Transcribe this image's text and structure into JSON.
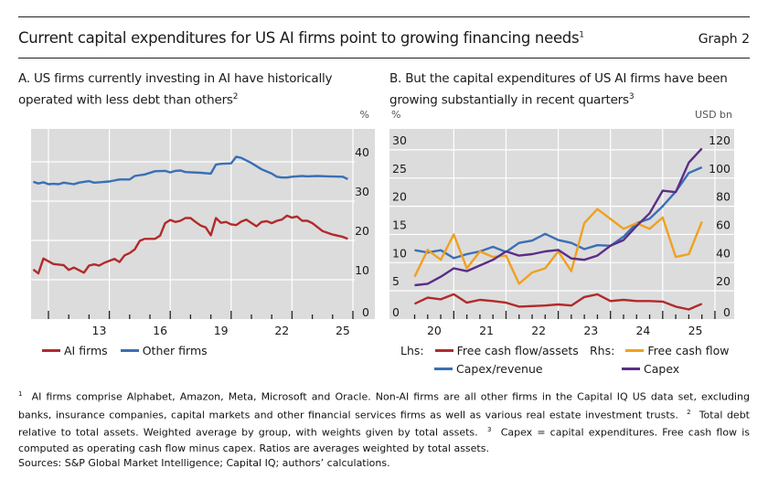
{
  "header": {
    "title": "Current capital expenditures for US AI firms point to growing financing needs",
    "title_note": "1",
    "graph_number": "Graph 2"
  },
  "colors": {
    "ai_firms": "#b22a2a",
    "other_firms": "#3a6fb5",
    "fcf_assets": "#b22a2a",
    "capex_revenue": "#3a6fb5",
    "free_cash_flow": "#f0a020",
    "capex": "#5b2d86",
    "plot_bg": "#dcdcdc",
    "grid": "#ffffff"
  },
  "chart_data": [
    {
      "type": "line",
      "panel": "A",
      "title": "A. US firms currently investing in AI have historically operated with less debt than others",
      "title_line1": "A. US firms currently investing in AI have historically",
      "title_line2": "operated with less debt than others",
      "title_note": "2",
      "ylabel": "%",
      "ylim": [
        0,
        48
      ],
      "yticks": [
        0,
        10,
        20,
        30,
        40
      ],
      "xlim": [
        2010.1,
        2026.0
      ],
      "xtick_labels": [
        "13",
        "16",
        "19",
        "22",
        "25"
      ],
      "xtick_label_positions": [
        2013.5,
        2016.5,
        2019.5,
        2022.5,
        2025.5
      ],
      "major_ticks": [
        2011,
        2014,
        2017,
        2020,
        2023,
        2026
      ],
      "grid": true,
      "legend_placement": "bottom",
      "series": [
        {
          "name": "AI firms",
          "x": [
            2010.25,
            2010.5,
            2010.75,
            2011.0,
            2011.25,
            2011.75,
            2012.0,
            2012.25,
            2012.75,
            2013.0,
            2013.25,
            2013.5,
            2013.75,
            2014.25,
            2014.5,
            2014.75,
            2015.0,
            2015.25,
            2015.5,
            2015.75,
            2016.25,
            2016.5,
            2016.75,
            2017.0,
            2017.25,
            2017.5,
            2017.75,
            2018.0,
            2018.25,
            2018.5,
            2018.75,
            2019.0,
            2019.25,
            2019.5,
            2019.75,
            2020.0,
            2020.25,
            2020.5,
            2020.75,
            2021.25,
            2021.5,
            2021.75,
            2022.0,
            2022.25,
            2022.5,
            2022.75,
            2023.0,
            2023.25,
            2023.5,
            2023.75,
            2024.0,
            2024.5,
            2025.0,
            2025.5,
            2025.75
          ],
          "values": [
            12.6,
            11.6,
            15.4,
            14.7,
            14.0,
            13.7,
            12.5,
            13.1,
            11.8,
            13.6,
            13.9,
            13.6,
            14.3,
            15.3,
            14.5,
            16.2,
            16.8,
            17.7,
            19.9,
            20.4,
            20.4,
            21.2,
            24.4,
            25.2,
            24.7,
            25.0,
            25.7,
            25.7,
            24.7,
            23.8,
            23.3,
            21.3,
            25.7,
            24.5,
            24.7,
            24.1,
            23.9,
            24.8,
            25.3,
            23.6,
            24.7,
            24.9,
            24.4,
            25.0,
            25.3,
            26.3,
            25.8,
            26.1,
            25.0,
            25.0,
            24.4,
            22.4,
            21.5,
            20.9,
            20.4
          ]
        },
        {
          "name": "Other firms",
          "x": [
            2010.25,
            2010.5,
            2010.75,
            2011.0,
            2011.25,
            2011.5,
            2011.75,
            2012.25,
            2012.5,
            2013.0,
            2013.25,
            2013.5,
            2014.0,
            2014.5,
            2015.0,
            2015.25,
            2015.75,
            2016.25,
            2016.75,
            2017.0,
            2017.25,
            2017.5,
            2017.75,
            2018.5,
            2019.0,
            2019.25,
            2019.5,
            2020.0,
            2020.25,
            2020.5,
            2021.0,
            2021.5,
            2022.0,
            2022.25,
            2022.5,
            2022.75,
            2023.0,
            2023.5,
            2023.75,
            2024.25,
            2024.75,
            2025.5,
            2025.75
          ],
          "values": [
            34.9,
            34.5,
            34.8,
            34.3,
            34.4,
            34.3,
            34.7,
            34.3,
            34.7,
            35.1,
            34.7,
            34.8,
            35.0,
            35.5,
            35.5,
            36.4,
            36.8,
            37.6,
            37.7,
            37.3,
            37.7,
            37.8,
            37.4,
            37.2,
            37.0,
            39.3,
            39.5,
            39.6,
            41.3,
            41.0,
            39.7,
            38.1,
            37.0,
            36.2,
            36.0,
            36.0,
            36.2,
            36.4,
            36.3,
            36.4,
            36.3,
            36.2,
            35.6
          ]
        }
      ]
    },
    {
      "type": "line",
      "panel": "B",
      "title": "B. But the capital expenditures of US AI firms have been growing substantially in recent quarters",
      "title_line1": "B. But the capital expenditures of US AI firms have been",
      "title_line2": "growing substantially in recent quarters",
      "title_note": "3",
      "ylabel_left": "%",
      "ylabel_right": "USD bn",
      "ylim_left": [
        0,
        30
      ],
      "ylim_right": [
        0,
        120
      ],
      "yticks_left": [
        0,
        5,
        10,
        15,
        20,
        25,
        30
      ],
      "yticks_right": [
        0,
        20,
        40,
        60,
        80,
        100,
        120
      ],
      "categories": [
        "2020Q1",
        "2020Q2",
        "2020Q3",
        "2020Q4",
        "2021Q1",
        "2021Q2",
        "2021Q3",
        "2021Q4",
        "2022Q1",
        "2022Q2",
        "2022Q3",
        "2022Q4",
        "2023Q1",
        "2023Q2",
        "2023Q3",
        "2023Q4",
        "2024Q1",
        "2024Q2",
        "2024Q3",
        "2024Q4",
        "2025Q1",
        "2025Q2",
        "2025Q3"
      ],
      "xtick_labels": [
        "20",
        "21",
        "22",
        "23",
        "24",
        "25"
      ],
      "grid": true,
      "legend_placement": "bottom",
      "series": [
        {
          "name": "Free cash flow/assets",
          "axis": "lhs",
          "values": [
            2.7,
            3.8,
            3.5,
            4.4,
            2.9,
            3.4,
            3.2,
            2.9,
            2.2,
            2.3,
            2.4,
            2.6,
            2.4,
            3.9,
            4.4,
            3.2,
            3.4,
            3.2,
            3.2,
            3.1,
            2.2,
            1.7,
            2.7
          ]
        },
        {
          "name": "Capex/revenue",
          "axis": "lhs",
          "values": [
            12.2,
            11.8,
            12.2,
            10.8,
            11.5,
            12.0,
            12.8,
            11.9,
            13.5,
            13.9,
            15.1,
            14.0,
            13.5,
            12.4,
            13.1,
            13.0,
            14.6,
            17.0,
            17.8,
            20.0,
            22.6,
            25.9,
            26.9
          ]
        },
        {
          "name": "Free cash flow",
          "axis": "rhs",
          "values": [
            30,
            49,
            42,
            60,
            36,
            48,
            44,
            45,
            25,
            33,
            36,
            48,
            34,
            68,
            78,
            71,
            64,
            68,
            64,
            72,
            44,
            46,
            69
          ]
        },
        {
          "name": "Capex",
          "axis": "rhs",
          "values": [
            24,
            25,
            30,
            36,
            34,
            38,
            42,
            48,
            45,
            46,
            48,
            49,
            43,
            42,
            45,
            52,
            56,
            66,
            75,
            91,
            90,
            111,
            121
          ]
        }
      ]
    }
  ],
  "legend": {
    "a": [
      "AI firms",
      "Other firms"
    ],
    "b_lhs_label": "Lhs:",
    "b_rhs_label": "Rhs:",
    "b_items": [
      "Free cash flow/assets",
      "Free cash flow",
      "Capex/revenue",
      "Capex"
    ]
  },
  "footnotes": {
    "n1_mark": "1",
    "n1": "AI firms comprise Alphabet, Amazon, Meta, Microsoft and Oracle. Non-AI firms are all other firms in the Capital IQ US data set, excluding banks, insurance companies, capital markets and other financial services firms as well as various real estate investment trusts.",
    "n2_mark": "2",
    "n2": "Total debt relative to total assets. Weighted average by group, with weights given by total assets.",
    "n3_mark": "3",
    "n3": "Capex = capital expenditures. Free cash flow is computed as operating cash flow minus capex. Ratios are averages weighted by total assets.",
    "sources": "Sources: S&P Global Market Intelligence; Capital IQ; authors’ calculations."
  }
}
